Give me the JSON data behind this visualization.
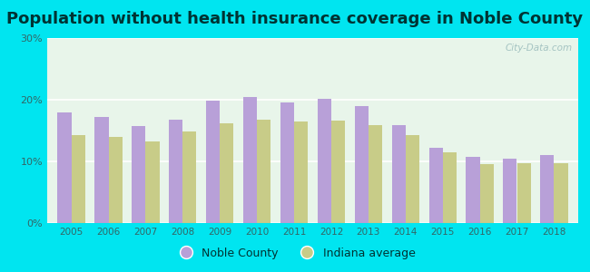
{
  "title": "Population without health insurance coverage in Noble County",
  "years": [
    2005,
    2006,
    2007,
    2008,
    2009,
    2010,
    2011,
    2012,
    2013,
    2014,
    2015,
    2016,
    2017,
    2018
  ],
  "noble_county": [
    18.0,
    17.2,
    15.7,
    16.8,
    19.8,
    20.4,
    19.6,
    20.2,
    18.9,
    15.9,
    12.2,
    10.7,
    10.4,
    11.1
  ],
  "indiana_avg": [
    14.2,
    14.0,
    13.2,
    14.8,
    16.2,
    16.8,
    16.4,
    16.6,
    15.9,
    14.2,
    11.4,
    9.5,
    9.7,
    9.7
  ],
  "noble_color": "#b8a0d8",
  "indiana_color": "#c8cc88",
  "bg_outer": "#00e5f0",
  "bg_plot": "#e8f5ea",
  "ylim": [
    0,
    30
  ],
  "yticks": [
    0,
    10,
    20,
    30
  ],
  "ytick_labels": [
    "0%",
    "10%",
    "20%",
    "30%"
  ],
  "legend_noble": "Noble County",
  "legend_indiana": "Indiana average",
  "watermark": "City-Data.com",
  "title_fontsize": 13,
  "title_color": "#003333",
  "bar_width": 0.37
}
